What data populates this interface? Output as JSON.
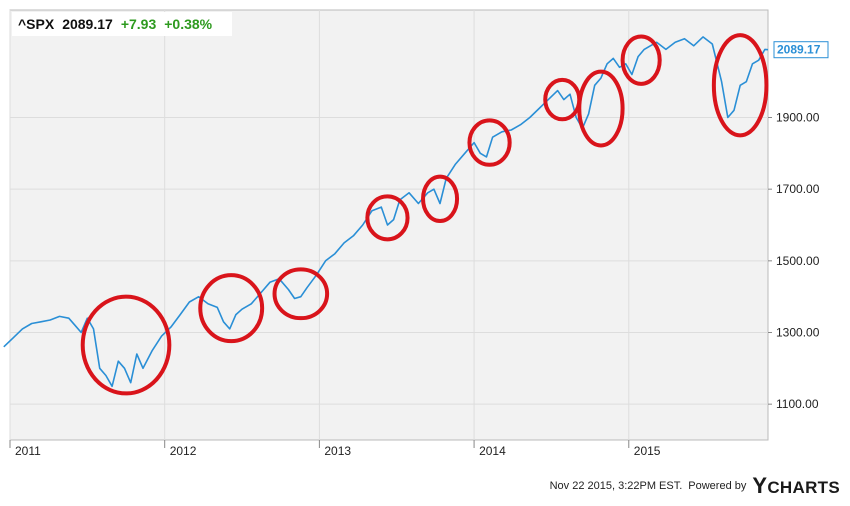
{
  "header": {
    "ticker": "^SPX",
    "price": "2089.17",
    "change": "+7.93",
    "change_pct": "+0.38%"
  },
  "footer": {
    "timestamp": "Nov 22 2015, 3:22PM EST.",
    "powered_by": "Powered by",
    "brand_y": "Y",
    "brand_rest": "CHARTS"
  },
  "colors": {
    "line": "#2a8fd6",
    "plot_bg": "#f2f2f2",
    "grid": "#dddddd",
    "circle": "#d9141b",
    "last_label": "#2a8fd6",
    "positive": "#2e9a1f"
  },
  "chart_data": {
    "type": "line",
    "title": "",
    "xlabel": "",
    "ylabel": "",
    "xlim": [
      2011.0,
      2015.9
    ],
    "ylim": [
      1000,
      2200
    ],
    "x_ticks": [
      {
        "x": 2011.0,
        "label": "2011"
      },
      {
        "x": 2012.0,
        "label": "2012"
      },
      {
        "x": 2013.0,
        "label": "2013"
      },
      {
        "x": 2014.0,
        "label": "2014"
      },
      {
        "x": 2015.0,
        "label": "2015"
      }
    ],
    "y_ticks": [
      {
        "y": 1100,
        "label": "1100.00"
      },
      {
        "y": 1300,
        "label": "1300.00"
      },
      {
        "y": 1500,
        "label": "1500.00"
      },
      {
        "y": 1700,
        "label": "1700.00"
      },
      {
        "y": 1900,
        "label": "1900.00"
      }
    ],
    "last_value": {
      "x": 2015.9,
      "y": 2089.17,
      "label": "2089.17"
    },
    "series": [
      {
        "name": "^SPX",
        "x": [
          2010.96,
          2011.02,
          2011.08,
          2011.14,
          2011.2,
          2011.26,
          2011.32,
          2011.38,
          2011.42,
          2011.46,
          2011.5,
          2011.54,
          2011.58,
          2011.62,
          2011.66,
          2011.7,
          2011.74,
          2011.78,
          2011.82,
          2011.86,
          2011.92,
          2011.98,
          2012.04,
          2012.1,
          2012.16,
          2012.22,
          2012.28,
          2012.34,
          2012.38,
          2012.42,
          2012.46,
          2012.5,
          2012.56,
          2012.62,
          2012.68,
          2012.74,
          2012.8,
          2012.84,
          2012.88,
          2012.92,
          2012.98,
          2013.04,
          2013.1,
          2013.16,
          2013.22,
          2013.28,
          2013.34,
          2013.4,
          2013.44,
          2013.48,
          2013.52,
          2013.58,
          2013.64,
          2013.7,
          2013.74,
          2013.78,
          2013.82,
          2013.88,
          2013.94,
          2014.0,
          2014.04,
          2014.08,
          2014.12,
          2014.18,
          2014.24,
          2014.3,
          2014.36,
          2014.42,
          2014.48,
          2014.54,
          2014.58,
          2014.62,
          2014.66,
          2014.7,
          2014.74,
          2014.78,
          2014.82,
          2014.86,
          2014.9,
          2014.94,
          2014.98,
          2015.02,
          2015.06,
          2015.1,
          2015.14,
          2015.18,
          2015.24,
          2015.3,
          2015.36,
          2015.42,
          2015.48,
          2015.54,
          2015.6,
          2015.64,
          2015.68,
          2015.72,
          2015.76,
          2015.8,
          2015.84,
          2015.88,
          2015.9
        ],
        "y": [
          1260,
          1285,
          1310,
          1325,
          1330,
          1335,
          1345,
          1340,
          1320,
          1300,
          1340,
          1310,
          1200,
          1180,
          1150,
          1220,
          1200,
          1160,
          1240,
          1200,
          1250,
          1290,
          1315,
          1350,
          1385,
          1400,
          1380,
          1370,
          1330,
          1310,
          1350,
          1365,
          1380,
          1410,
          1440,
          1450,
          1420,
          1395,
          1400,
          1425,
          1460,
          1500,
          1520,
          1550,
          1570,
          1600,
          1640,
          1650,
          1600,
          1615,
          1670,
          1690,
          1660,
          1690,
          1700,
          1660,
          1730,
          1770,
          1800,
          1830,
          1800,
          1790,
          1845,
          1860,
          1865,
          1880,
          1900,
          1925,
          1950,
          1975,
          1950,
          1965,
          1900,
          1870,
          1910,
          1990,
          2010,
          2050,
          2065,
          2040,
          2050,
          2020,
          2070,
          2090,
          2100,
          2110,
          2090,
          2110,
          2120,
          2100,
          2125,
          2105,
          2000,
          1900,
          1920,
          1990,
          2000,
          2050,
          2060,
          2090,
          2089.17
        ]
      }
    ],
    "annotations": [
      {
        "shape": "circle",
        "x": 2011.75,
        "y": 1265,
        "rx": 0.28,
        "ry": 135
      },
      {
        "shape": "circle",
        "x": 2012.43,
        "y": 1368,
        "rx": 0.2,
        "ry": 92
      },
      {
        "shape": "circle",
        "x": 2012.88,
        "y": 1408,
        "rx": 0.17,
        "ry": 68
      },
      {
        "shape": "circle",
        "x": 2013.44,
        "y": 1620,
        "rx": 0.13,
        "ry": 60
      },
      {
        "shape": "circle",
        "x": 2013.78,
        "y": 1673,
        "rx": 0.11,
        "ry": 62
      },
      {
        "shape": "circle",
        "x": 2014.1,
        "y": 1830,
        "rx": 0.13,
        "ry": 62
      },
      {
        "shape": "circle",
        "x": 2014.57,
        "y": 1950,
        "rx": 0.11,
        "ry": 55
      },
      {
        "shape": "circle",
        "x": 2014.82,
        "y": 1925,
        "rx": 0.14,
        "ry": 103
      },
      {
        "shape": "circle",
        "x": 2015.08,
        "y": 2060,
        "rx": 0.12,
        "ry": 66
      },
      {
        "shape": "circle",
        "x": 2015.72,
        "y": 1990,
        "rx": 0.17,
        "ry": 140
      }
    ]
  }
}
